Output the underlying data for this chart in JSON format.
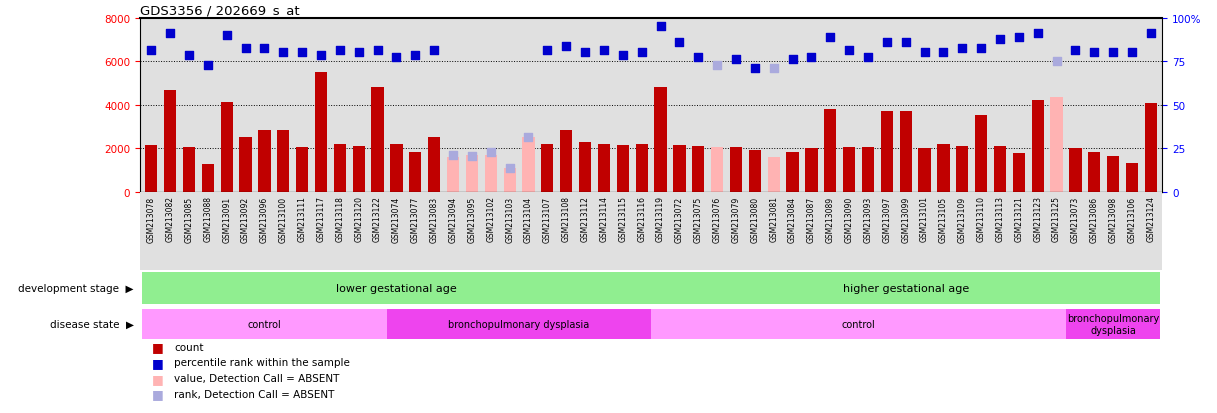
{
  "title": "GDS3356 / 202669_s_at",
  "samples": [
    "GSM213078",
    "GSM213082",
    "GSM213085",
    "GSM213088",
    "GSM213091",
    "GSM213092",
    "GSM213096",
    "GSM213100",
    "GSM213111",
    "GSM213117",
    "GSM213118",
    "GSM213120",
    "GSM213122",
    "GSM213074",
    "GSM213077",
    "GSM213083",
    "GSM213094",
    "GSM213095",
    "GSM213102",
    "GSM213103",
    "GSM213104",
    "GSM213107",
    "GSM213108",
    "GSM213112",
    "GSM213114",
    "GSM213115",
    "GSM213116",
    "GSM213119",
    "GSM213072",
    "GSM213075",
    "GSM213076",
    "GSM213079",
    "GSM213080",
    "GSM213081",
    "GSM213084",
    "GSM213087",
    "GSM213089",
    "GSM213090",
    "GSM213093",
    "GSM213097",
    "GSM213099",
    "GSM213101",
    "GSM213105",
    "GSM213109",
    "GSM213110",
    "GSM213113",
    "GSM213121",
    "GSM213123",
    "GSM213125",
    "GSM213073",
    "GSM213086",
    "GSM213098",
    "GSM213106",
    "GSM213124"
  ],
  "count_values": [
    2150,
    4650,
    2050,
    1280,
    4100,
    2500,
    2850,
    2850,
    2050,
    5500,
    2200,
    2100,
    4800,
    2200,
    1800,
    2500,
    1600,
    1700,
    1700,
    1100,
    2500,
    2200,
    2850,
    2300,
    2200,
    2150,
    2200,
    4800,
    2150,
    2100,
    2050,
    2050,
    1900,
    1600,
    1800,
    2000,
    3800,
    2050,
    2050,
    3700,
    3700,
    2000,
    2200,
    2100,
    3500,
    2100,
    1750,
    4200,
    4350,
    2000,
    1800,
    1650,
    1300,
    4050
  ],
  "rank_values": [
    6500,
    7300,
    6300,
    5800,
    7200,
    6600,
    6600,
    6400,
    6400,
    6300,
    6500,
    6400,
    6500,
    6200,
    6300,
    6500,
    1700,
    1650,
    1800,
    1100,
    2500,
    6500,
    6700,
    6400,
    6500,
    6300,
    6400,
    7600,
    6900,
    6200,
    5800,
    6100,
    5700,
    5700,
    6100,
    6200,
    7100,
    6500,
    6200,
    6900,
    6900,
    6400,
    6400,
    6600,
    6600,
    7000,
    7100,
    7300,
    6000,
    6500,
    6400,
    6400,
    6400,
    7300
  ],
  "absent_mask": [
    false,
    false,
    false,
    false,
    false,
    false,
    false,
    false,
    false,
    false,
    false,
    false,
    false,
    false,
    false,
    false,
    true,
    true,
    true,
    true,
    true,
    false,
    false,
    false,
    false,
    false,
    false,
    false,
    false,
    false,
    true,
    false,
    false,
    true,
    false,
    false,
    false,
    false,
    false,
    false,
    false,
    false,
    false,
    false,
    false,
    false,
    false,
    false,
    true,
    false,
    false,
    false,
    false,
    false
  ],
  "ylim_left": [
    0,
    8000
  ],
  "ylim_right": [
    0,
    100
  ],
  "yticks_left": [
    0,
    2000,
    4000,
    6000,
    8000
  ],
  "yticks_right": [
    0,
    25,
    50,
    75,
    100
  ],
  "bar_color_present": "#c00000",
  "bar_color_absent": "#ffb3b3",
  "rank_color_present": "#0000cd",
  "rank_color_absent": "#aaaadd",
  "chart_bg": "#e0e0e0",
  "dev_stage_groups": [
    {
      "label": "lower gestational age",
      "start": 0,
      "end": 27,
      "color": "#90ee90"
    },
    {
      "label": "higher gestational age",
      "start": 27,
      "end": 54,
      "color": "#90ee90"
    }
  ],
  "disease_groups": [
    {
      "label": "control",
      "start": 0,
      "end": 13,
      "color": "#ff99ff"
    },
    {
      "label": "bronchopulmonary dysplasia",
      "start": 13,
      "end": 27,
      "color": "#ee44ee"
    },
    {
      "label": "control",
      "start": 27,
      "end": 49,
      "color": "#ff99ff"
    },
    {
      "label": "bronchopulmonary\ndysplasia",
      "start": 49,
      "end": 54,
      "color": "#ee44ee"
    }
  ],
  "legend_items": [
    {
      "color": "#c00000",
      "label": "count"
    },
    {
      "color": "#0000cd",
      "label": "percentile rank within the sample"
    },
    {
      "color": "#ffb3b3",
      "label": "value, Detection Call = ABSENT"
    },
    {
      "color": "#aaaadd",
      "label": "rank, Detection Call = ABSENT"
    }
  ]
}
